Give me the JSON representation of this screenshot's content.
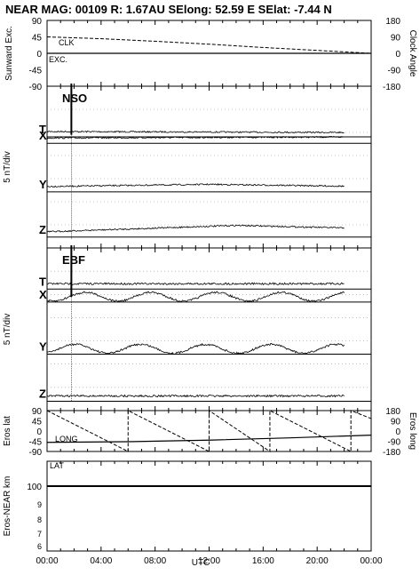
{
  "header": {
    "title": "NEAR MAG: 00109  R: 1.67AU  SElong:   52.59 E  SElat:   -7.44 N"
  },
  "chart_data": [
    {
      "type": "line",
      "panel": "angles",
      "ylabel_left": "Sunward Exc.",
      "ylabel_right": "Clock Angle",
      "yticks_left": [
        "45",
        "0",
        "-45",
        "-90"
      ],
      "yticks_left_top": "90",
      "yticks_right": [
        "180",
        "90",
        "0",
        "-90",
        "-180"
      ],
      "ylim": [
        -90,
        90
      ],
      "x": [
        0,
        24
      ],
      "series": [
        {
          "name": "CLK",
          "style": "dashed",
          "points": [
            [
              0,
              45
            ],
            [
              4,
              40
            ],
            [
              8,
              33
            ],
            [
              12,
              25
            ],
            [
              16,
              16
            ],
            [
              20,
              8
            ],
            [
              23,
              2
            ],
            [
              24,
              0
            ]
          ]
        },
        {
          "name": "EXC.",
          "style": "solid",
          "points": [
            [
              0,
              0
            ],
            [
              24,
              0
            ]
          ]
        }
      ]
    },
    {
      "type": "line",
      "panel": "magnetometer",
      "station": "NSO",
      "ylabel": "5 nT/div",
      "components": [
        "T",
        "X",
        "Y",
        "Z"
      ],
      "series": [
        {
          "name": "T",
          "baseline": 0.28,
          "style": "solid",
          "trend": [
            [
              0,
              0
            ],
            [
              24,
              1
            ]
          ]
        },
        {
          "name": "X",
          "baseline": 0.32,
          "style": "solid",
          "trend": [
            [
              0,
              0
            ],
            [
              24,
              -1
            ]
          ]
        },
        {
          "name": "Y",
          "baseline": 0.62,
          "style": "solid",
          "trend": [
            [
              0,
              0
            ],
            [
              12,
              -2
            ],
            [
              24,
              0
            ]
          ]
        },
        {
          "name": "Z",
          "baseline": 0.9,
          "style": "solid",
          "trend": [
            [
              0,
              0
            ],
            [
              14,
              -6
            ],
            [
              24,
              -3
            ]
          ]
        }
      ],
      "event_time": 1.8
    },
    {
      "type": "line",
      "panel": "magnetometer",
      "station": "EBF",
      "ylabel": "5 nT/div",
      "components": [
        "T",
        "X",
        "Y",
        "Z"
      ],
      "series": [
        {
          "name": "T",
          "baseline": 0.22,
          "style": "solid",
          "trend": [
            [
              0,
              0
            ],
            [
              24,
              0
            ]
          ]
        },
        {
          "name": "X",
          "baseline": 0.3,
          "style": "solid",
          "trend": [
            [
              0,
              0
            ],
            [
              24,
              0
            ]
          ]
        },
        {
          "name": "Y",
          "baseline": 0.62,
          "style": "solid",
          "trend": [
            [
              0,
              0
            ],
            [
              24,
              0
            ]
          ]
        },
        {
          "name": "Z",
          "baseline": 0.91,
          "style": "solid",
          "trend": [
            [
              0,
              0
            ],
            [
              24,
              0
            ]
          ]
        }
      ],
      "event_time": 1.8
    },
    {
      "type": "line",
      "panel": "eros",
      "ylabel_left": "Eros lat",
      "ylabel_right": "Eros long",
      "yticks_left": [
        "90",
        "45",
        "0",
        "-45",
        "-90"
      ],
      "yticks_right": [
        "180",
        "90",
        "0",
        "-90",
        "-180"
      ],
      "ylim": [
        -90,
        90
      ],
      "series": [
        {
          "name": "LONG",
          "style": "dashed",
          "points": [
            [
              0,
              180
            ],
            [
              6,
              -180
            ],
            [
              6,
              180
            ],
            [
              12,
              -180
            ],
            [
              12,
              180
            ],
            [
              16.5,
              -180
            ],
            [
              16.5,
              180
            ],
            [
              22.5,
              -180
            ],
            [
              22.5,
              180
            ],
            [
              24,
              110
            ]
          ]
        },
        {
          "name": "LAT",
          "style": "solid",
          "points": [
            [
              0,
              -50
            ],
            [
              6,
              -47
            ],
            [
              12,
              -40
            ],
            [
              18,
              -30
            ],
            [
              24,
              -18
            ]
          ]
        }
      ]
    },
    {
      "type": "line",
      "panel": "range",
      "ylabel": "Eros-NEAR km",
      "yticks": [
        "100",
        "9",
        "8",
        "7",
        "6"
      ],
      "series": [
        {
          "name": "range",
          "style": "solid",
          "points": [
            [
              0,
              100
            ],
            [
              24,
              100
            ]
          ]
        }
      ]
    }
  ],
  "xaxis": {
    "label": "UTC",
    "ticks": [
      "00:00",
      "04:00",
      "08:00",
      "12:00",
      "16:00",
      "20:00",
      "00:00"
    ]
  }
}
